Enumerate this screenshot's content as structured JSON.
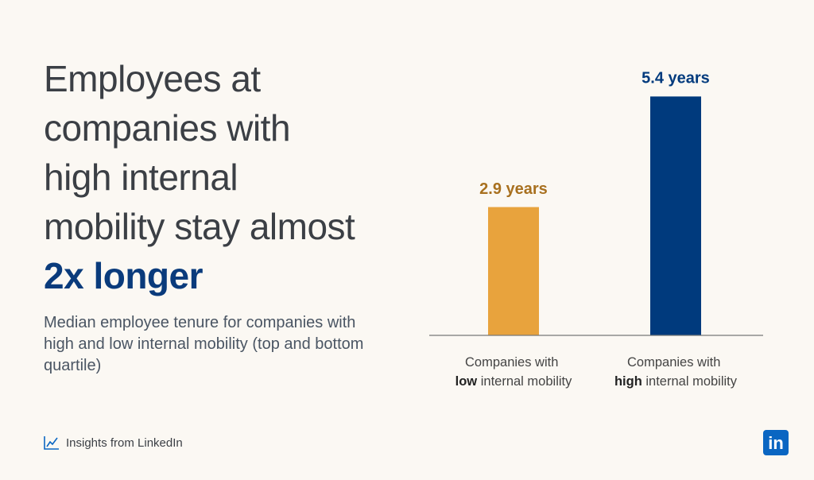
{
  "chart_data": {
    "type": "bar",
    "title": "Employees at companies with high internal mobility stay almost",
    "title_emphasis": "2x longer",
    "subtitle": "Median employee tenure for companies with high and low internal mobility (top and bottom quartile)",
    "categories": [
      "Companies with low internal mobility",
      "Companies with high internal mobility"
    ],
    "category_emphasis": [
      "low",
      "high"
    ],
    "values": [
      2.9,
      5.4
    ],
    "value_labels": [
      "2.9 years",
      "5.4 years"
    ],
    "colors": [
      "#e8a33d",
      "#003a7d"
    ],
    "label_colors": [
      "#a8701f",
      "#003a7d"
    ],
    "ylim": [
      0,
      6
    ]
  },
  "footer": {
    "source": "Insights from LinkedIn",
    "logo": "in"
  }
}
